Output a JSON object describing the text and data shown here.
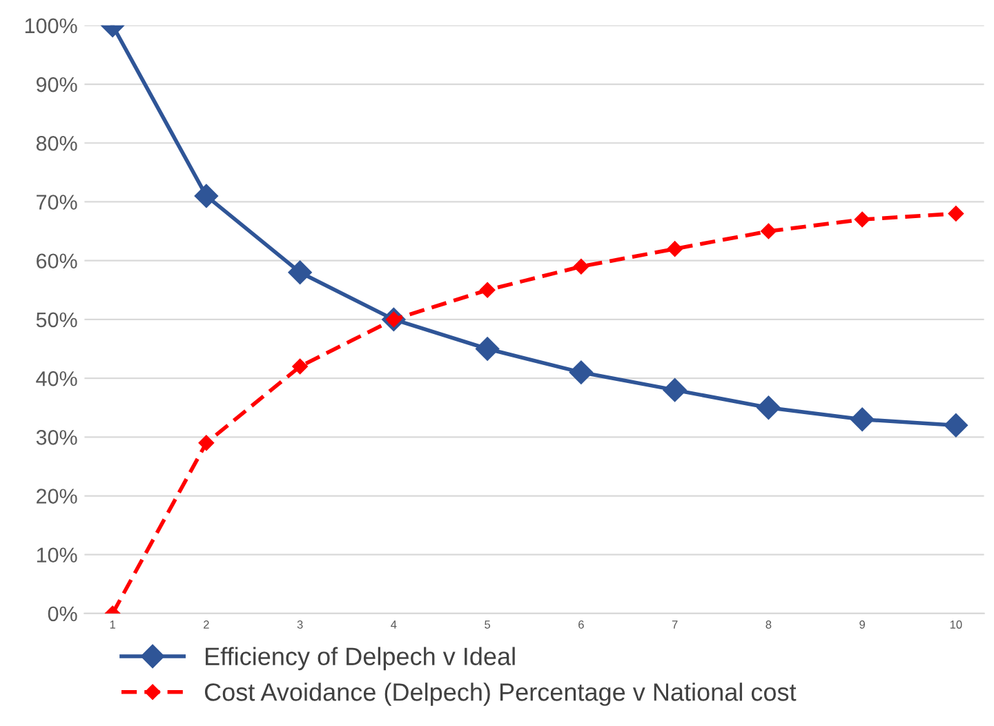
{
  "chart_data": {
    "type": "line",
    "categories": [
      "1",
      "2",
      "3",
      "4",
      "5",
      "6",
      "7",
      "8",
      "9",
      "10"
    ],
    "series": [
      {
        "name": "Efficiency of Delpech v Ideal",
        "color": "#2f5597",
        "line_style": "solid",
        "values": [
          100,
          71,
          58,
          50,
          45,
          41,
          38,
          35,
          33,
          32
        ]
      },
      {
        "name": "Cost Avoidance (Delpech) Percentage v National cost",
        "color": "#ff0000",
        "line_style": "dashed",
        "values": [
          0,
          29,
          42,
          50,
          55,
          59,
          62,
          65,
          67,
          68
        ]
      }
    ],
    "ylim": [
      0,
      100
    ],
    "yticks": [
      {
        "value": 0,
        "label": "0%"
      },
      {
        "value": 10,
        "label": "10%"
      },
      {
        "value": 20,
        "label": "20%"
      },
      {
        "value": 30,
        "label": "30%"
      },
      {
        "value": 40,
        "label": "40%"
      },
      {
        "value": 50,
        "label": "50%"
      },
      {
        "value": 60,
        "label": "60%"
      },
      {
        "value": 70,
        "label": "70%"
      },
      {
        "value": 80,
        "label": "80%"
      },
      {
        "value": 90,
        "label": "90%"
      },
      {
        "value": 100,
        "label": "100%"
      }
    ],
    "grid": "y",
    "legend": "bottom",
    "marker": "diamond"
  }
}
